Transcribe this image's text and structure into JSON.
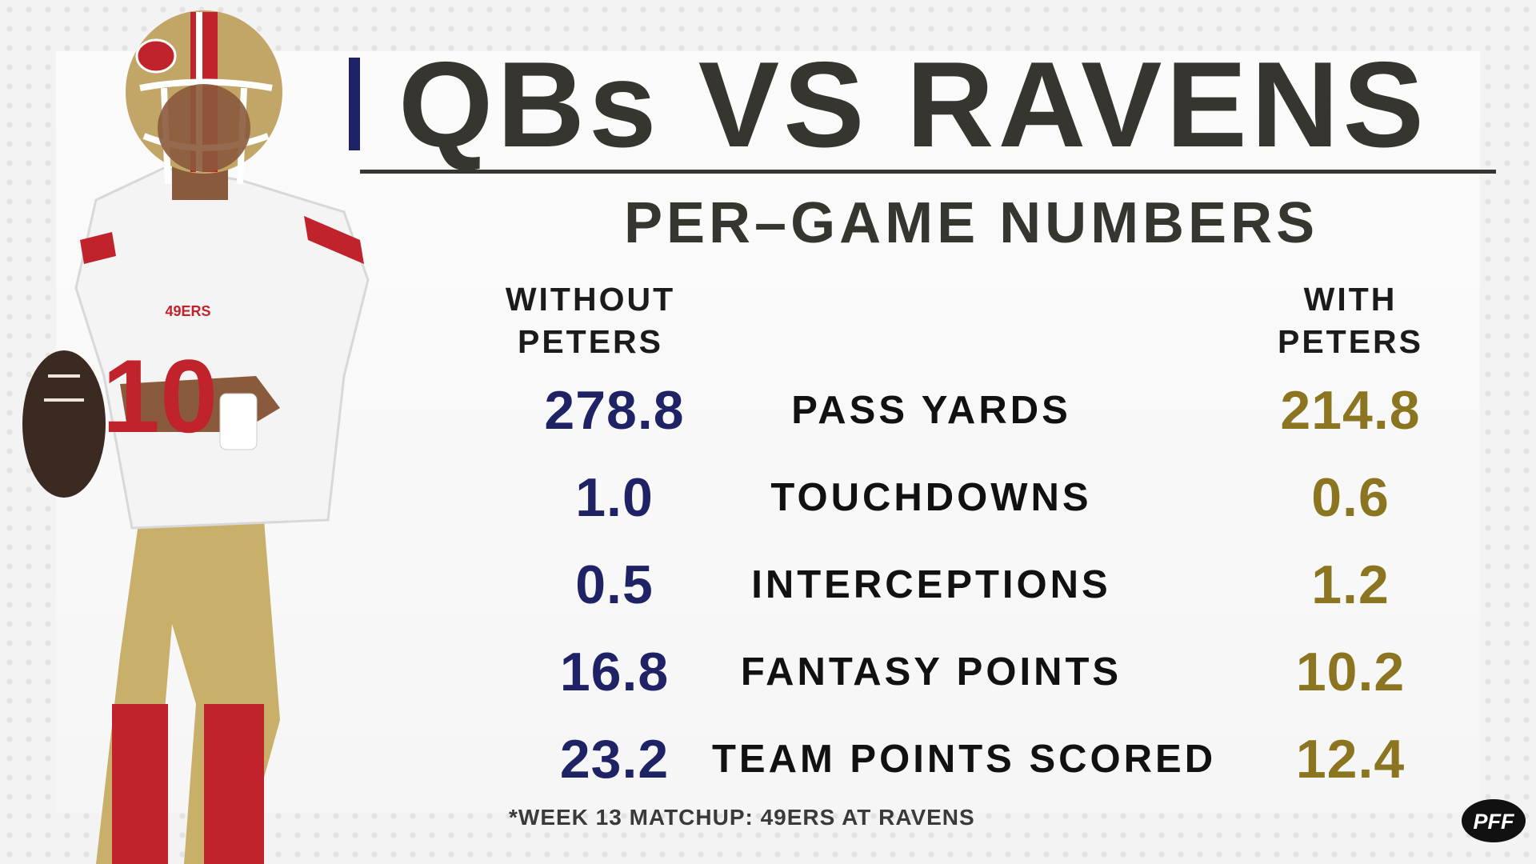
{
  "title": "QBs VS RAVENS",
  "subtitle": "PER–GAME NUMBERS",
  "columns": {
    "left_line1": "WITHOUT",
    "left_line2": "PETERS",
    "right_line1": "WITH",
    "right_line2": "PETERS"
  },
  "rows": [
    {
      "label": "PASS YARDS",
      "without": "278.8",
      "with": "214.8"
    },
    {
      "label": "TOUCHDOWNS",
      "without": "1.0",
      "with": "0.6"
    },
    {
      "label": "INTERCEPTIONS",
      "without": "0.5",
      "with": "1.2"
    },
    {
      "label": "FANTASY POINTS",
      "without": "16.8",
      "with": "10.2"
    },
    {
      "label": "TEAM POINTS SCORED",
      "without": "23.2",
      "with": "12.4"
    }
  ],
  "footnote": "*WEEK 13 MATCHUP: 49ERS AT RAVENS",
  "logo_text": "PFF",
  "player": {
    "jersey_number": "10",
    "jersey_text": "49ERS"
  },
  "colors": {
    "without_value": "#1f2264",
    "with_value": "#8b7520",
    "title": "#373530",
    "accent": "#1f2264"
  }
}
